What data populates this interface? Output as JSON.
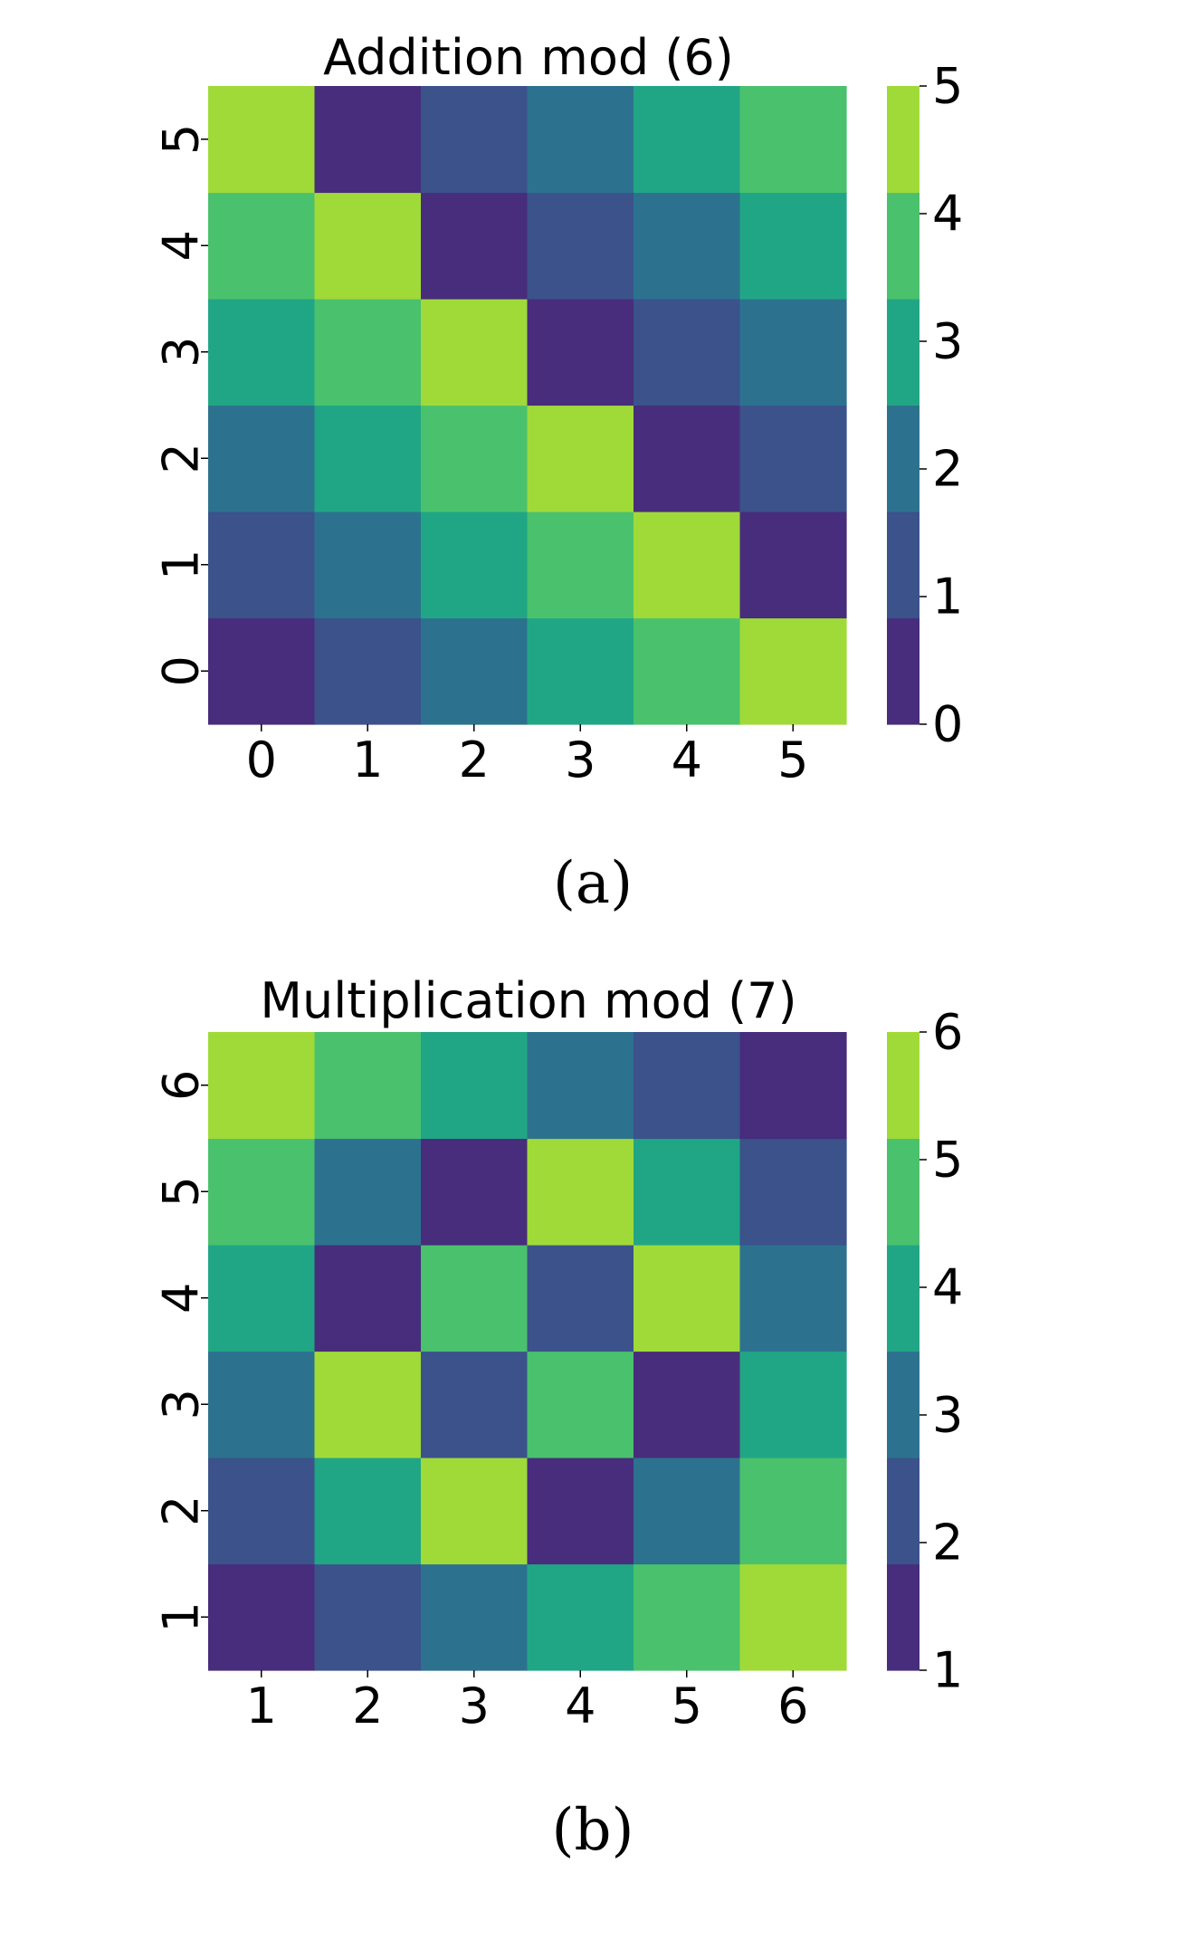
{
  "chart_data": [
    {
      "type": "heatmap",
      "title": "Addition mod (6)",
      "caption": "(a)",
      "x": [
        0,
        1,
        2,
        3,
        4,
        5
      ],
      "y": [
        0,
        1,
        2,
        3,
        4,
        5
      ],
      "x_tick_labels": [
        "0",
        "1",
        "2",
        "3",
        "4",
        "5"
      ],
      "y_tick_labels": [
        "0",
        "1",
        "2",
        "3",
        "4",
        "5"
      ],
      "y_order": "ascending-upward",
      "values": [
        [
          0,
          1,
          2,
          3,
          4,
          5
        ],
        [
          1,
          2,
          3,
          4,
          5,
          0
        ],
        [
          2,
          3,
          4,
          5,
          0,
          1
        ],
        [
          3,
          4,
          5,
          0,
          1,
          2
        ],
        [
          4,
          5,
          0,
          1,
          2,
          3
        ],
        [
          5,
          0,
          1,
          2,
          3,
          4
        ]
      ],
      "colorbar": {
        "min": 0,
        "max": 5,
        "ticks": [
          0,
          1,
          2,
          3,
          4,
          5
        ],
        "tick_labels": [
          "0",
          "1",
          "2",
          "3",
          "4",
          "5"
        ],
        "discrete": true
      },
      "colors": [
        "#472d7b",
        "#3b528b",
        "#2c728e",
        "#21a685",
        "#4ac16d",
        "#a0da39"
      ]
    },
    {
      "type": "heatmap",
      "title": "Multiplication mod (7)",
      "caption": "(b)",
      "x": [
        1,
        2,
        3,
        4,
        5,
        6
      ],
      "y": [
        1,
        2,
        3,
        4,
        5,
        6
      ],
      "x_tick_labels": [
        "1",
        "2",
        "3",
        "4",
        "5",
        "6"
      ],
      "y_tick_labels": [
        "1",
        "2",
        "3",
        "4",
        "5",
        "6"
      ],
      "y_order": "ascending-upward",
      "values": [
        [
          1,
          2,
          3,
          4,
          5,
          6
        ],
        [
          2,
          4,
          6,
          1,
          3,
          5
        ],
        [
          3,
          6,
          2,
          5,
          1,
          4
        ],
        [
          4,
          1,
          5,
          2,
          6,
          3
        ],
        [
          5,
          3,
          1,
          6,
          4,
          2
        ],
        [
          6,
          5,
          4,
          3,
          2,
          1
        ]
      ],
      "colorbar": {
        "min": 1,
        "max": 6,
        "ticks": [
          1,
          2,
          3,
          4,
          5,
          6
        ],
        "tick_labels": [
          "1",
          "2",
          "3",
          "4",
          "5",
          "6"
        ],
        "discrete": true
      },
      "colors": [
        "#472d7b",
        "#3b528b",
        "#2c728e",
        "#21a685",
        "#4ac16d",
        "#a0da39"
      ]
    }
  ]
}
